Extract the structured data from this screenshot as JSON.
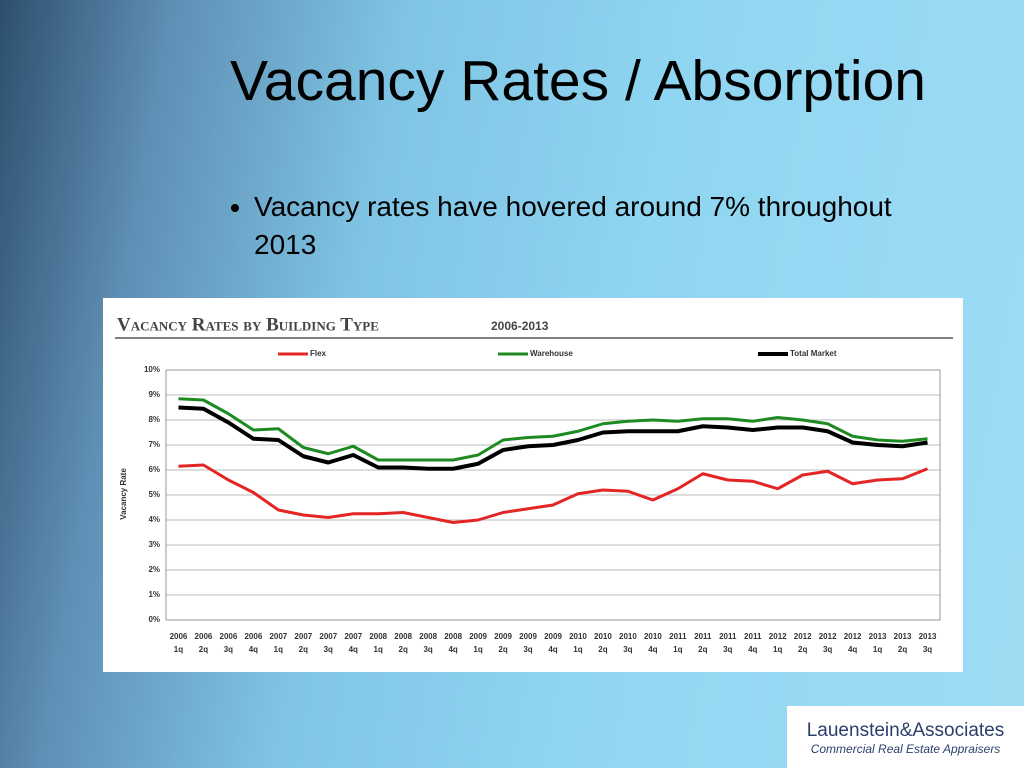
{
  "slide": {
    "title": "Vacancy Rates / Absorption",
    "bullets": [
      "Vacancy rates have hovered around 7% throughout 2013"
    ],
    "logo": {
      "name": "Lauenstein&Associates",
      "tagline": "Commercial Real Estate Appraisers"
    }
  },
  "chart_data": {
    "type": "line",
    "title": "Vacancy Rates by Building Type",
    "subtitle": "2006-2013",
    "y_label": "Vacancy Rate",
    "categories": [
      "2006 1q",
      "2006 2q",
      "2006 3q",
      "2006 4q",
      "2007 1q",
      "2007 2q",
      "2007 3q",
      "2007 4q",
      "2008 1q",
      "2008 2q",
      "2008 3q",
      "2008 4q",
      "2009 1q",
      "2009 2q",
      "2009 3q",
      "2009 4q",
      "2010 1q",
      "2010 2q",
      "2010 3q",
      "2010 4q",
      "2011 1q",
      "2011 2q",
      "2011 3q",
      "2011 4q",
      "2012 1q",
      "2012 2q",
      "2012 3q",
      "2012 4q",
      "2013 1q",
      "2013 2q",
      "2013 3q"
    ],
    "series": [
      {
        "name": "Flex",
        "color": "#e32526",
        "values": [
          6.15,
          6.2,
          5.6,
          5.1,
          4.4,
          4.2,
          4.1,
          4.25,
          4.25,
          4.3,
          4.1,
          3.9,
          4.0,
          4.3,
          4.45,
          4.6,
          5.05,
          5.2,
          5.15,
          4.8,
          5.25,
          5.85,
          5.6,
          5.55,
          5.25,
          5.8,
          5.95,
          5.45,
          5.6,
          5.65,
          6.05
        ]
      },
      {
        "name": "Warehouse",
        "color": "#1e8a22",
        "values": [
          8.85,
          8.8,
          8.25,
          7.6,
          7.65,
          6.9,
          6.65,
          6.95,
          6.4,
          6.4,
          6.4,
          6.4,
          6.6,
          7.2,
          7.3,
          7.35,
          7.55,
          7.85,
          7.95,
          8.0,
          7.95,
          8.05,
          8.05,
          7.95,
          8.1,
          8.0,
          7.85,
          7.35,
          7.2,
          7.15,
          7.25
        ]
      },
      {
        "name": "Total Market",
        "color": "#000000",
        "values": [
          8.5,
          8.45,
          7.9,
          7.25,
          7.2,
          6.55,
          6.3,
          6.6,
          6.1,
          6.1,
          6.05,
          6.05,
          6.25,
          6.8,
          6.95,
          7.0,
          7.2,
          7.5,
          7.55,
          7.55,
          7.55,
          7.75,
          7.7,
          7.6,
          7.7,
          7.7,
          7.55,
          7.1,
          7.0,
          6.95,
          7.1
        ]
      }
    ],
    "ylim": [
      0,
      10
    ],
    "yticks": [
      {
        "value": 0,
        "label": "0%"
      },
      {
        "value": 1,
        "label": "1%"
      },
      {
        "value": 2,
        "label": "2%"
      },
      {
        "value": 3,
        "label": "3%"
      },
      {
        "value": 4,
        "label": "4%"
      },
      {
        "value": 5,
        "label": "5%"
      },
      {
        "value": 6,
        "label": "6%"
      },
      {
        "value": 7,
        "label": "7%"
      },
      {
        "value": 8,
        "label": "8%"
      },
      {
        "value": 9,
        "label": "9%"
      },
      {
        "value": 10,
        "label": "10%"
      }
    ],
    "grid": true,
    "legend": "top"
  }
}
